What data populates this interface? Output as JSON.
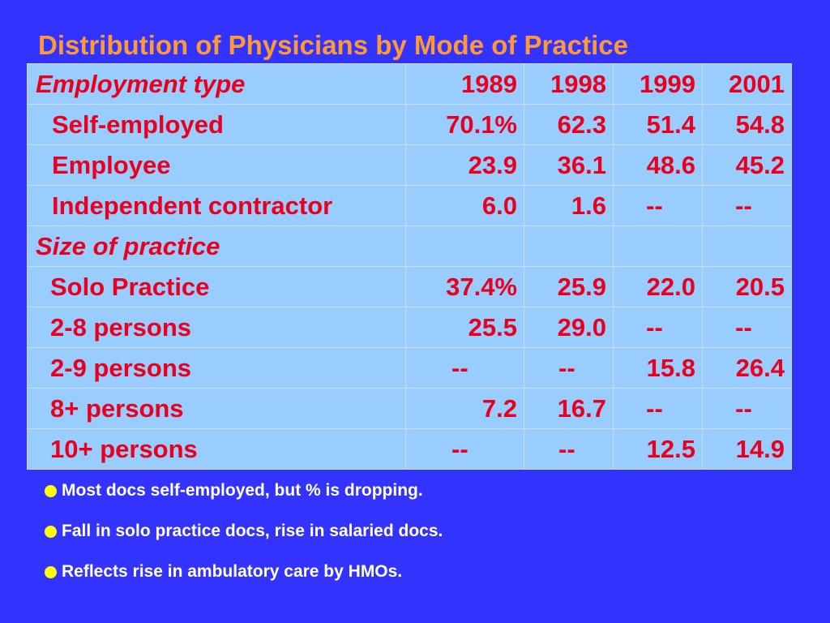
{
  "title": "Distribution of Physicians by Mode of Practice",
  "table": {
    "header": {
      "label": "Employment type",
      "years": [
        "1989",
        "1998",
        "1999",
        "2001"
      ]
    },
    "rows": [
      {
        "label": "Self-employed",
        "values": [
          "70.1%",
          "62.3",
          "51.4",
          "54.8"
        ]
      },
      {
        "label": "Employee",
        "values": [
          "23.9",
          "36.1",
          "48.6",
          "45.2"
        ]
      },
      {
        "label": "Independent contractor",
        "values": [
          "6.0",
          "1.6",
          "--",
          "--"
        ]
      }
    ],
    "section2": {
      "label": "Size of practice",
      "rows": [
        {
          "label": "Solo Practice",
          "values": [
            "37.4%",
            "25.9",
            "22.0",
            "20.5"
          ]
        },
        {
          "label": "2-8 persons",
          "values": [
            "25.5",
            "29.0",
            "--",
            "--"
          ]
        },
        {
          "label": "2-9 persons",
          "values": [
            "--",
            "--",
            "15.8",
            "26.4"
          ]
        },
        {
          "label": "8+ persons",
          "values": [
            "7.2",
            "16.7",
            "--",
            "--"
          ]
        },
        {
          "label": "10+ persons",
          "values": [
            "--",
            "--",
            "12.5",
            "14.9"
          ]
        }
      ]
    }
  },
  "bullets": [
    "Most docs self-employed, but % is dropping.",
    "Fall in solo practice docs, rise in salaried docs.",
    "Reflects rise in ambulatory care by HMOs."
  ],
  "colors": {
    "background": "#3333ff",
    "title": "#ff9933",
    "table_fill": "#99ccff",
    "table_text": "#e8001c",
    "bullet_text": "#ffffff",
    "bullet_dot": "#ffff00"
  }
}
